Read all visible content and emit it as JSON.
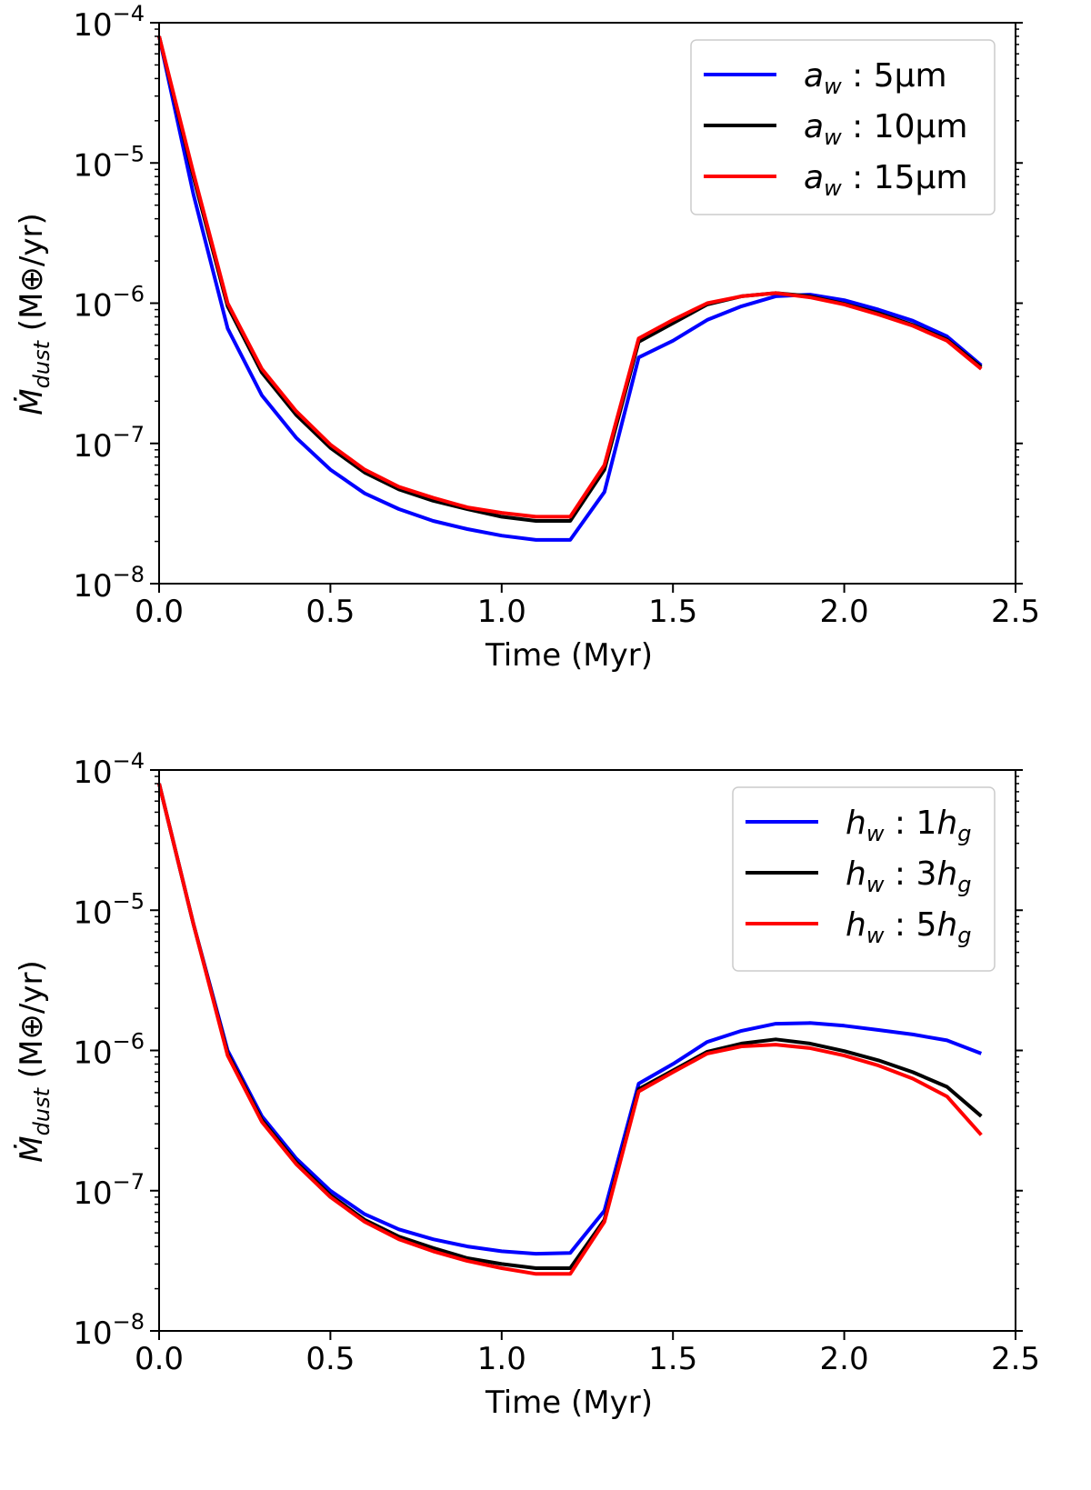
{
  "colors": {
    "blue": "#0000ff",
    "black": "#000000",
    "red": "#ff0000"
  },
  "chart_data": [
    {
      "type": "line",
      "xlabel": "Time (Myr)",
      "ylabel": "Ṁ_dust (M⊕/yr)",
      "ylabel_parts": {
        "main": "Ṁ",
        "sub": "dust",
        "unit": " (M⊕/yr)"
      },
      "xlim": [
        0,
        2.5
      ],
      "ylim": [
        1e-08,
        0.0001
      ],
      "yscale": "log",
      "xticks": [
        0.0,
        0.5,
        1.0,
        1.5,
        2.0,
        2.5
      ],
      "xtick_labels": [
        "0.0",
        "0.5",
        "1.0",
        "1.5",
        "2.0",
        "2.5"
      ],
      "yticks": [
        1e-08,
        1e-07,
        1e-06,
        1e-05,
        0.0001
      ],
      "ytick_labels": [
        {
          "base": "10",
          "exp": "−8"
        },
        {
          "base": "10",
          "exp": "−7"
        },
        {
          "base": "10",
          "exp": "−6"
        },
        {
          "base": "10",
          "exp": "−5"
        },
        {
          "base": "10",
          "exp": "−4"
        }
      ],
      "legend_position": "top-right",
      "grid": false,
      "x": [
        0,
        0.1,
        0.2,
        0.3,
        0.4,
        0.5,
        0.6,
        0.7,
        0.8,
        0.9,
        1.0,
        1.1,
        1.2,
        1.3,
        1.4,
        1.5,
        1.6,
        1.7,
        1.8,
        1.9,
        2.0,
        2.1,
        2.2,
        2.3,
        2.4
      ],
      "series": [
        {
          "name": "a_w : 5μm",
          "legend": {
            "var": "a",
            "sub": "w",
            "text": " : 5μm"
          },
          "color": "#0000ff",
          "values": [
            8e-05,
            6e-06,
            6.6e-07,
            2.2e-07,
            1.1e-07,
            6.5e-08,
            4.4e-08,
            3.4e-08,
            2.8e-08,
            2.45e-08,
            2.2e-08,
            2.05e-08,
            2.05e-08,
            4.5e-08,
            4.1e-07,
            5.4e-07,
            7.6e-07,
            9.5e-07,
            1.12e-06,
            1.15e-06,
            1.05e-06,
            9e-07,
            7.5e-07,
            5.8e-07,
            3.6e-07
          ]
        },
        {
          "name": "a_w : 10μm",
          "legend": {
            "var": "a",
            "sub": "w",
            "text": " : 10μm"
          },
          "color": "#000000",
          "values": [
            8e-05,
            8e-06,
            9.5e-07,
            3.2e-07,
            1.6e-07,
            9.3e-08,
            6.2e-08,
            4.7e-08,
            3.9e-08,
            3.4e-08,
            3e-08,
            2.8e-08,
            2.8e-08,
            6.5e-08,
            5.3e-07,
            7.2e-07,
            9.8e-07,
            1.12e-06,
            1.18e-06,
            1.12e-06,
            9.9e-07,
            8.5e-07,
            7e-07,
            5.5e-07,
            3.5e-07
          ]
        },
        {
          "name": "a_w : 15μm",
          "legend": {
            "var": "a",
            "sub": "w",
            "text": " : 15μm"
          },
          "color": "#ff0000",
          "values": [
            8e-05,
            8.5e-06,
            1e-06,
            3.4e-07,
            1.7e-07,
            9.8e-08,
            6.5e-08,
            4.9e-08,
            4.1e-08,
            3.5e-08,
            3.2e-08,
            3e-08,
            3e-08,
            7e-08,
            5.6e-07,
            7.6e-07,
            1e-06,
            1.12e-06,
            1.18e-06,
            1.1e-06,
            9.8e-07,
            8.3e-07,
            6.9e-07,
            5.4e-07,
            3.4e-07
          ]
        }
      ]
    },
    {
      "type": "line",
      "xlabel": "Time (Myr)",
      "ylabel": "Ṁ_dust (M⊕/yr)",
      "ylabel_parts": {
        "main": "Ṁ",
        "sub": "dust",
        "unit": " (M⊕/yr)"
      },
      "xlim": [
        0,
        2.5
      ],
      "ylim": [
        1e-08,
        0.0001
      ],
      "yscale": "log",
      "xticks": [
        0.0,
        0.5,
        1.0,
        1.5,
        2.0,
        2.5
      ],
      "xtick_labels": [
        "0.0",
        "0.5",
        "1.0",
        "1.5",
        "2.0",
        "2.5"
      ],
      "yticks": [
        1e-08,
        1e-07,
        1e-06,
        1e-05,
        0.0001
      ],
      "ytick_labels": [
        {
          "base": "10",
          "exp": "−8"
        },
        {
          "base": "10",
          "exp": "−7"
        },
        {
          "base": "10",
          "exp": "−6"
        },
        {
          "base": "10",
          "exp": "−5"
        },
        {
          "base": "10",
          "exp": "−4"
        }
      ],
      "legend_position": "top-right",
      "grid": false,
      "x": [
        0,
        0.1,
        0.2,
        0.3,
        0.4,
        0.5,
        0.6,
        0.7,
        0.8,
        0.9,
        1.0,
        1.1,
        1.2,
        1.3,
        1.4,
        1.5,
        1.6,
        1.7,
        1.8,
        1.9,
        2.0,
        2.1,
        2.2,
        2.3,
        2.4
      ],
      "series": [
        {
          "name": "h_w : 1h_g",
          "legend": {
            "var": "h",
            "sub": "w",
            "text": " : 1",
            "var2": "h",
            "sub2": "g"
          },
          "color": "#0000ff",
          "values": [
            8e-05,
            8e-06,
            1e-06,
            3.4e-07,
            1.7e-07,
            1e-07,
            6.8e-08,
            5.3e-08,
            4.5e-08,
            4e-08,
            3.7e-08,
            3.55e-08,
            3.6e-08,
            7.2e-08,
            5.8e-07,
            8e-07,
            1.15e-06,
            1.38e-06,
            1.55e-06,
            1.57e-06,
            1.5e-06,
            1.4e-06,
            1.3e-06,
            1.18e-06,
            9.5e-07
          ]
        },
        {
          "name": "h_w : 3h_g",
          "legend": {
            "var": "h",
            "sub": "w",
            "text": " : 3",
            "var2": "h",
            "sub2": "g"
          },
          "color": "#000000",
          "values": [
            8e-05,
            8e-06,
            9.5e-07,
            3.2e-07,
            1.6e-07,
            9.3e-08,
            6.2e-08,
            4.7e-08,
            3.9e-08,
            3.3e-08,
            3e-08,
            2.8e-08,
            2.8e-08,
            6.2e-08,
            5.3e-07,
            7.2e-07,
            9.8e-07,
            1.12e-06,
            1.2e-06,
            1.12e-06,
            9.9e-07,
            8.5e-07,
            7e-07,
            5.5e-07,
            3.4e-07
          ]
        },
        {
          "name": "h_w : 5h_g",
          "legend": {
            "var": "h",
            "sub": "w",
            "text": " : 5",
            "var2": "h",
            "sub2": "g"
          },
          "color": "#ff0000",
          "values": [
            8e-05,
            8e-06,
            9.2e-07,
            3.1e-07,
            1.55e-07,
            9e-08,
            6e-08,
            4.5e-08,
            3.7e-08,
            3.15e-08,
            2.8e-08,
            2.55e-08,
            2.55e-08,
            6e-08,
            5.1e-07,
            7e-07,
            9.5e-07,
            1.07e-06,
            1.1e-06,
            1.04e-06,
            9.2e-07,
            7.8e-07,
            6.3e-07,
            4.7e-07,
            2.5e-07
          ]
        }
      ]
    }
  ]
}
